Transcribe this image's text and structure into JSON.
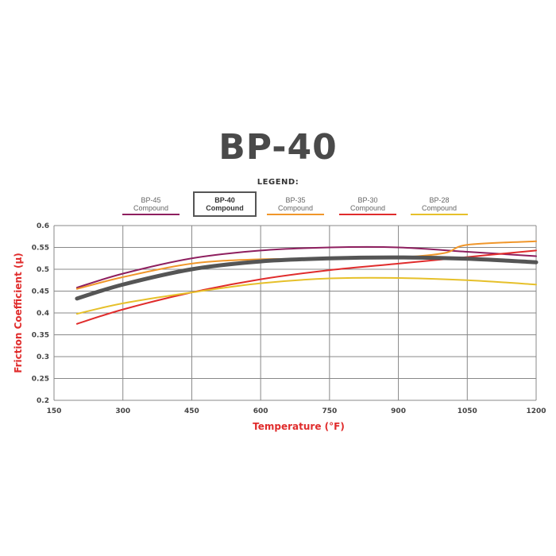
{
  "title": "BP-40",
  "legend_title": "LEGEND:",
  "legend": [
    {
      "line1": "BP-45",
      "line2": "Compound",
      "color": "#8e1f5f",
      "selected": false
    },
    {
      "line1": "BP-40",
      "line2": "Compound",
      "color": "#555555",
      "selected": true
    },
    {
      "line1": "BP-35",
      "line2": "Compound",
      "color": "#f0962a",
      "selected": false
    },
    {
      "line1": "BP-30",
      "line2": "Compound",
      "color": "#e02c2c",
      "selected": false
    },
    {
      "line1": "BP-28",
      "line2": "Compound",
      "color": "#e6c02a",
      "selected": false
    }
  ],
  "chart_data": {
    "type": "line",
    "title": "BP-40",
    "xlabel": "Temperature (°F)",
    "ylabel": "Friction Coefficient (µ)",
    "xlim": [
      150,
      1200
    ],
    "ylim": [
      0.2,
      0.6
    ],
    "xticks": [
      "150",
      "300",
      "450",
      "600",
      "750",
      "900",
      "1050",
      "1200"
    ],
    "yticks": [
      "0.2",
      "0.25",
      "0.3",
      "0.35",
      "0.4",
      "0.45",
      "0.5",
      "0.55",
      "0.6"
    ],
    "grid": true,
    "series": [
      {
        "name": "BP-45 Compound",
        "color": "#8e1f5f",
        "x": [
          200,
          300,
          450,
          600,
          750,
          900,
          1050,
          1200
        ],
        "y": [
          0.458,
          0.49,
          0.525,
          0.543,
          0.55,
          0.55,
          0.54,
          0.53
        ]
      },
      {
        "name": "BP-35 Compound",
        "color": "#f0962a",
        "x": [
          200,
          300,
          450,
          600,
          750,
          900,
          1000,
          1050,
          1200
        ],
        "y": [
          0.455,
          0.482,
          0.513,
          0.523,
          0.524,
          0.527,
          0.537,
          0.556,
          0.564
        ]
      },
      {
        "name": "BP-30 Compound",
        "color": "#e02c2c",
        "x": [
          200,
          300,
          450,
          600,
          750,
          900,
          1050,
          1200
        ],
        "y": [
          0.375,
          0.408,
          0.447,
          0.477,
          0.498,
          0.513,
          0.528,
          0.543
        ]
      },
      {
        "name": "BP-28 Compound",
        "color": "#e6c02a",
        "x": [
          200,
          300,
          450,
          600,
          750,
          900,
          1050,
          1200
        ],
        "y": [
          0.398,
          0.422,
          0.447,
          0.468,
          0.479,
          0.48,
          0.475,
          0.465
        ]
      },
      {
        "name": "BP-40 Compound",
        "color": "#555555",
        "x": [
          200,
          300,
          450,
          600,
          750,
          900,
          1050,
          1200
        ],
        "y": [
          0.433,
          0.465,
          0.5,
          0.518,
          0.525,
          0.527,
          0.524,
          0.516
        ]
      }
    ]
  }
}
